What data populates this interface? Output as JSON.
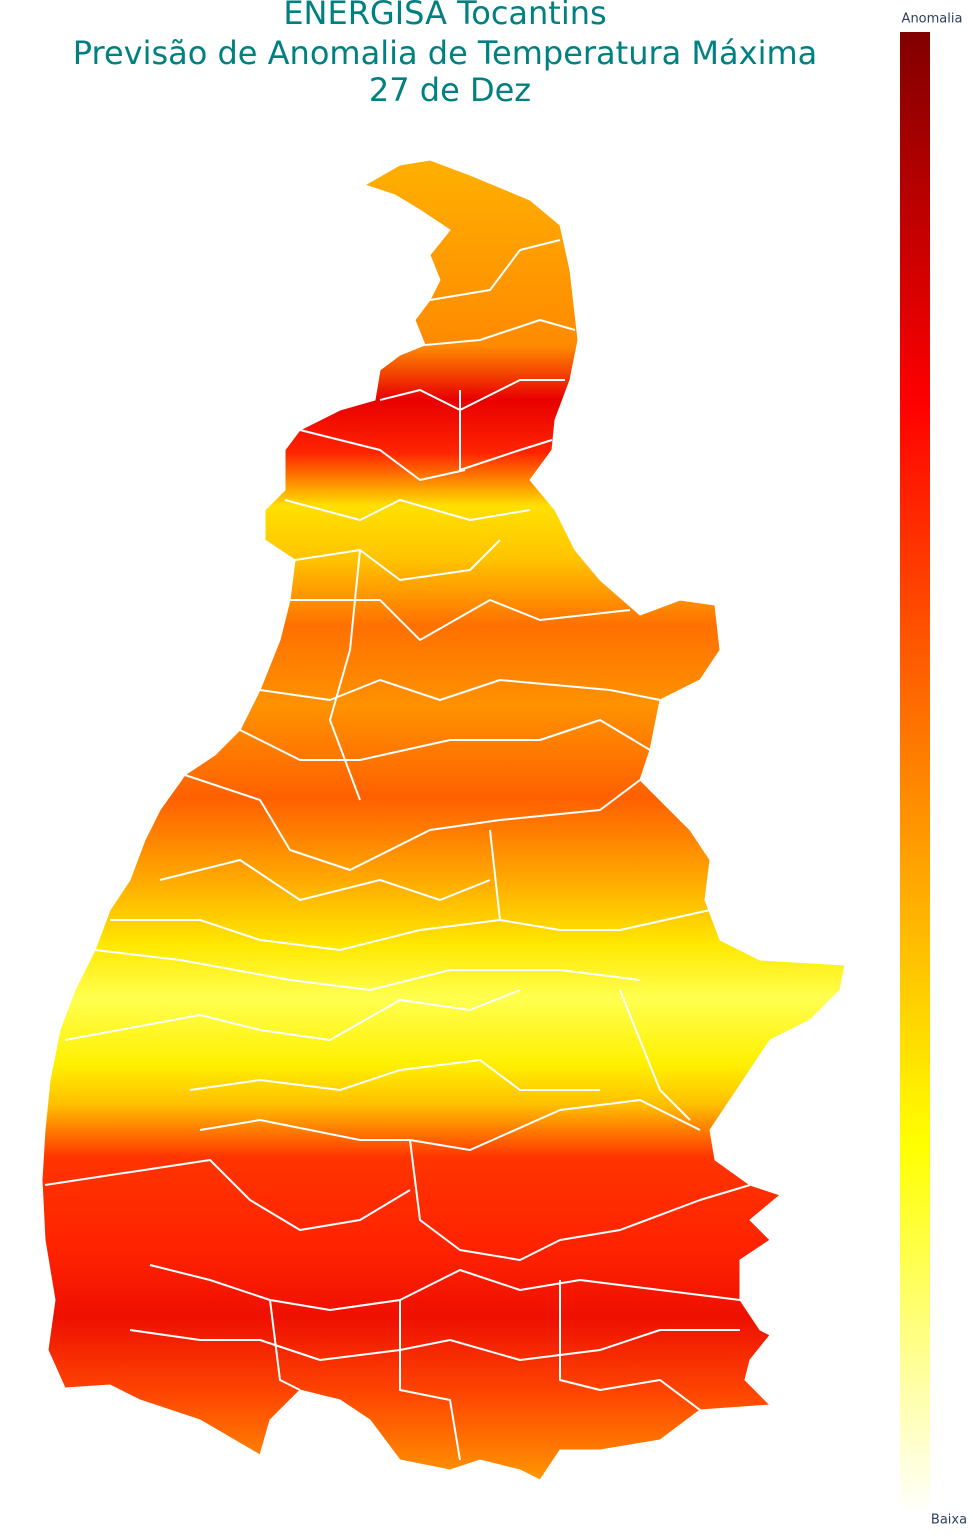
{
  "title": {
    "lines": [
      "ENERGISA Tocantins",
      "Previsão de Anomalia de Temperatura Máxima",
      "27 de Dez"
    ]
  },
  "colorbar": {
    "top_label": "Anomalia",
    "bottom_label": "Baixa"
  }
}
